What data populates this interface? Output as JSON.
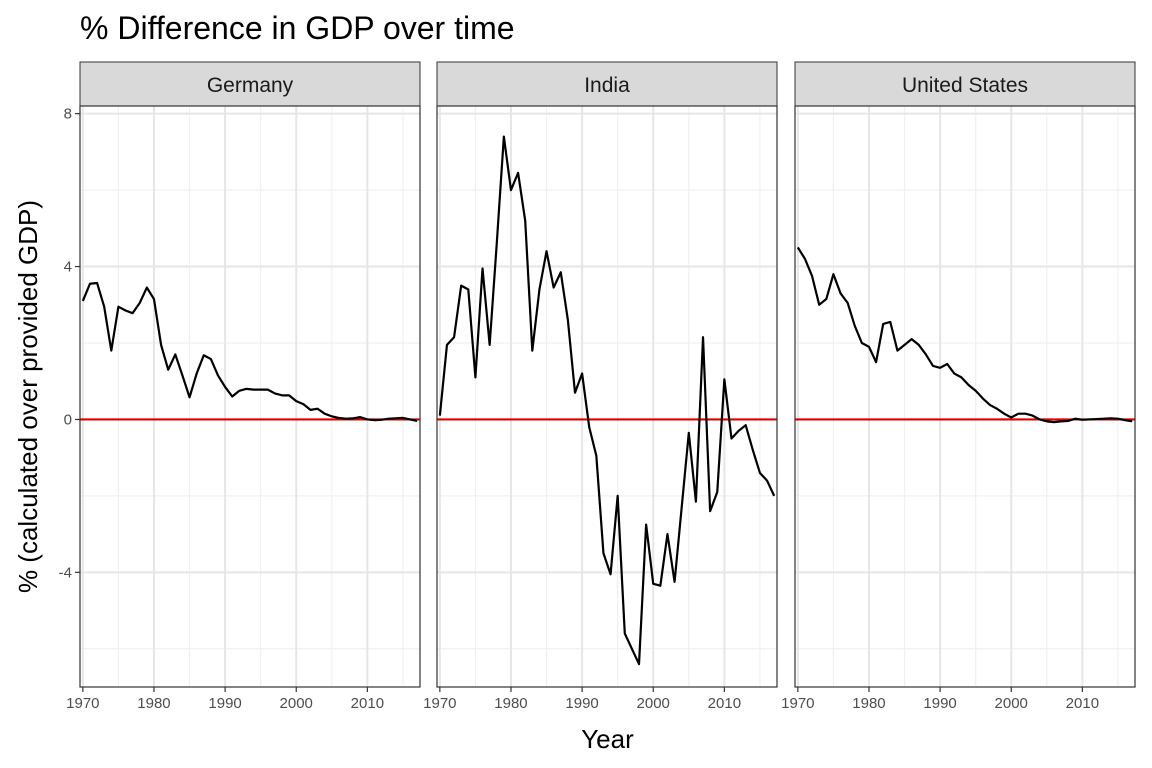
{
  "chart_data": {
    "type": "line",
    "title": "% Difference in GDP over time",
    "xlabel": "Year",
    "ylabel": "% (calculated over provided GDP)",
    "xlim": [
      1969.6,
      2017.4
    ],
    "ylim": [
      -7,
      8.2
    ],
    "xticks": [
      1970,
      1980,
      1990,
      2000,
      2010
    ],
    "yticks": [
      -4,
      0,
      4,
      8
    ],
    "reference_line": {
      "y": 0,
      "color": "#e00000"
    },
    "line_color": "#000000",
    "grid": true,
    "facets": [
      {
        "label": "Germany",
        "x": [
          1970,
          1971,
          1972,
          1973,
          1974,
          1975,
          1976,
          1977,
          1978,
          1979,
          1980,
          1981,
          1982,
          1983,
          1984,
          1985,
          1986,
          1987,
          1988,
          1989,
          1990,
          1991,
          1992,
          1993,
          1994,
          1995,
          1996,
          1997,
          1998,
          1999,
          2000,
          2001,
          2002,
          2003,
          2004,
          2005,
          2006,
          2007,
          2008,
          2009,
          2010,
          2011,
          2012,
          2013,
          2014,
          2015,
          2016,
          2017
        ],
        "values": [
          3.1,
          3.55,
          3.57,
          2.95,
          1.8,
          2.95,
          2.85,
          2.78,
          3.05,
          3.45,
          3.15,
          1.95,
          1.3,
          1.7,
          1.15,
          0.58,
          1.2,
          1.68,
          1.58,
          1.15,
          0.85,
          0.6,
          0.75,
          0.8,
          0.78,
          0.78,
          0.78,
          0.68,
          0.63,
          0.63,
          0.48,
          0.4,
          0.25,
          0.28,
          0.15,
          0.08,
          0.04,
          0.02,
          0.03,
          0.06,
          0.0,
          -0.02,
          -0.01,
          0.02,
          0.03,
          0.04,
          0.0,
          -0.04
        ]
      },
      {
        "label": "India",
        "x": [
          1970,
          1971,
          1972,
          1973,
          1974,
          1975,
          1976,
          1977,
          1978,
          1979,
          1980,
          1981,
          1982,
          1983,
          1984,
          1985,
          1986,
          1987,
          1988,
          1989,
          1990,
          1991,
          1992,
          1993,
          1994,
          1995,
          1996,
          1997,
          1998,
          1999,
          2000,
          2001,
          2002,
          2003,
          2004,
          2005,
          2006,
          2007,
          2008,
          2009,
          2010,
          2011,
          2012,
          2013,
          2014,
          2015,
          2016,
          2017
        ],
        "values": [
          0.1,
          1.95,
          2.15,
          3.5,
          3.4,
          1.1,
          3.95,
          1.95,
          4.6,
          7.4,
          6.0,
          6.45,
          5.2,
          1.8,
          3.4,
          4.4,
          3.45,
          3.85,
          2.6,
          0.7,
          1.2,
          -0.2,
          -0.95,
          -3.5,
          -4.05,
          -2.0,
          -5.6,
          -6.0,
          -6.4,
          -2.75,
          -4.3,
          -4.35,
          -3.0,
          -4.25,
          -2.3,
          -0.35,
          -2.15,
          2.15,
          -2.4,
          -1.9,
          1.05,
          -0.5,
          -0.3,
          -0.15,
          -0.8,
          -1.4,
          -1.6,
          -2.0
        ]
      },
      {
        "label": "United States",
        "x": [
          1970,
          1971,
          1972,
          1973,
          1974,
          1975,
          1976,
          1977,
          1978,
          1979,
          1980,
          1981,
          1982,
          1983,
          1984,
          1985,
          1986,
          1987,
          1988,
          1989,
          1990,
          1991,
          1992,
          1993,
          1994,
          1995,
          1996,
          1997,
          1998,
          1999,
          2000,
          2001,
          2002,
          2003,
          2004,
          2005,
          2006,
          2007,
          2008,
          2009,
          2010,
          2011,
          2012,
          2013,
          2014,
          2015,
          2016,
          2017
        ],
        "values": [
          4.5,
          4.2,
          3.75,
          3.0,
          3.15,
          3.8,
          3.3,
          3.05,
          2.45,
          2.0,
          1.9,
          1.5,
          2.5,
          2.55,
          1.8,
          1.95,
          2.1,
          1.95,
          1.7,
          1.4,
          1.35,
          1.45,
          1.2,
          1.1,
          0.9,
          0.75,
          0.55,
          0.38,
          0.28,
          0.15,
          0.05,
          0.15,
          0.15,
          0.1,
          0.0,
          -0.05,
          -0.07,
          -0.05,
          -0.04,
          0.02,
          -0.01,
          0.0,
          0.01,
          0.02,
          0.03,
          0.02,
          -0.02,
          -0.05
        ]
      }
    ]
  }
}
